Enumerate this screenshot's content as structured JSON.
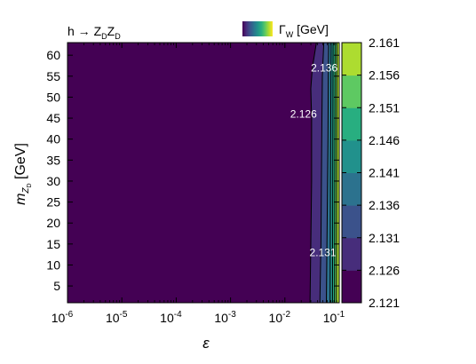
{
  "chart_data": {
    "type": "heatmap",
    "title": "h → Z_D Z_D",
    "colorbar_label": "Γ_W [GeV]",
    "xlabel": "ε",
    "ylabel": "m_{Z_D} [GeV]",
    "x_scale": "log",
    "xlim": [
      1e-06,
      0.1
    ],
    "ylim": [
      1,
      63
    ],
    "x_ticks": [
      {
        "value": 1e-06,
        "base": "10",
        "exp": "-6"
      },
      {
        "value": 1e-05,
        "base": "10",
        "exp": "-5"
      },
      {
        "value": 0.0001,
        "base": "10",
        "exp": "-4"
      },
      {
        "value": 0.001,
        "base": "10",
        "exp": "-3"
      },
      {
        "value": 0.01,
        "base": "10",
        "exp": "-2"
      },
      {
        "value": 0.1,
        "base": "10",
        "exp": "-1"
      }
    ],
    "y_ticks": [
      5,
      10,
      15,
      20,
      25,
      30,
      35,
      40,
      45,
      50,
      55,
      60
    ],
    "colorbar": {
      "min": 2.121,
      "max": 2.161,
      "ticks": [
        "2.121",
        "2.126",
        "2.131",
        "2.136",
        "2.141",
        "2.146",
        "2.151",
        "2.156",
        "2.161"
      ],
      "colors": [
        "#440154",
        "#472d7b",
        "#3b528b",
        "#2c728e",
        "#21918c",
        "#28ae80",
        "#5ec962",
        "#addc30",
        "#fde725"
      ]
    },
    "contours": [
      {
        "level": 2.126,
        "label": "2.126",
        "points": [
          [
            0.029,
            1
          ],
          [
            0.03,
            15
          ],
          [
            0.031,
            30
          ],
          [
            0.031,
            45
          ],
          [
            0.03,
            52
          ],
          [
            0.032,
            57
          ],
          [
            0.038,
            63
          ]
        ]
      },
      {
        "level": 2.131,
        "label": "2.131",
        "points": [
          [
            0.044,
            1
          ],
          [
            0.046,
            15
          ],
          [
            0.047,
            30
          ],
          [
            0.048,
            45
          ],
          [
            0.049,
            55
          ],
          [
            0.052,
            63
          ]
        ]
      },
      {
        "level": 2.136,
        "label": "2.136",
        "points": [
          [
            0.058,
            1
          ],
          [
            0.06,
            20
          ],
          [
            0.062,
            40
          ],
          [
            0.063,
            55
          ],
          [
            0.064,
            63
          ]
        ]
      },
      {
        "level": 2.141,
        "points": [
          [
            0.068,
            1
          ],
          [
            0.069,
            30
          ],
          [
            0.071,
            63
          ]
        ]
      },
      {
        "level": 2.146,
        "points": [
          [
            0.075,
            1
          ],
          [
            0.076,
            30
          ],
          [
            0.077,
            63
          ]
        ]
      },
      {
        "level": 2.151,
        "points": [
          [
            0.082,
            1
          ],
          [
            0.083,
            30
          ],
          [
            0.084,
            63
          ]
        ]
      },
      {
        "level": 2.156,
        "points": [
          [
            0.089,
            1
          ],
          [
            0.09,
            30
          ],
          [
            0.091,
            63
          ]
        ]
      }
    ],
    "contour_labels": [
      {
        "text": "2.136",
        "x": 0.053,
        "y": 57
      },
      {
        "text": "2.126",
        "x": 0.022,
        "y": 46
      },
      {
        "text": "2.131",
        "x": 0.05,
        "y": 13
      }
    ],
    "grid": false,
    "legend": "colorbar"
  }
}
